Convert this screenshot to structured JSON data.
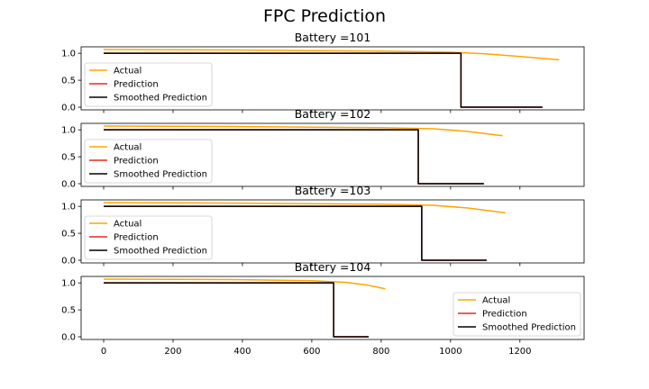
{
  "figure": {
    "title": "FPC Prediction"
  },
  "colors": {
    "actual": "#FFA500",
    "prediction": "#E8281E",
    "smoothed": "#000000",
    "legend_border": "#CCCCCC"
  },
  "chart_data": [
    {
      "type": "line",
      "title": "Battery =101",
      "xlim": [
        -65,
        1385
      ],
      "ylim": [
        -0.05,
        1.12
      ],
      "xticks": [
        0,
        200,
        400,
        600,
        800,
        1000,
        1200
      ],
      "yticks": [
        0.0,
        0.5,
        1.0
      ],
      "show_xtick_labels": false,
      "legend_loc": "left",
      "series": [
        {
          "name": "Actual",
          "x": [
            0,
            400,
            800,
            1000,
            1100,
            1200,
            1313
          ],
          "y": [
            1.07,
            1.06,
            1.04,
            1.02,
            0.99,
            0.94,
            0.88
          ]
        },
        {
          "name": "Prediction",
          "x": [
            0,
            1030,
            1030,
            1265
          ],
          "y": [
            1,
            1,
            0,
            0
          ]
        },
        {
          "name": "Smoothed Prediction",
          "x": [
            0,
            1030,
            1030,
            1265
          ],
          "y": [
            1,
            1,
            0,
            0
          ]
        }
      ]
    },
    {
      "type": "line",
      "title": "Battery =102",
      "xlim": [
        -65,
        1385
      ],
      "ylim": [
        -0.05,
        1.12
      ],
      "xticks": [
        0,
        200,
        400,
        600,
        800,
        1000,
        1200
      ],
      "yticks": [
        0.0,
        0.5,
        1.0
      ],
      "show_xtick_labels": false,
      "legend_loc": "left",
      "series": [
        {
          "name": "Actual",
          "x": [
            0,
            400,
            800,
            950,
            1050,
            1150
          ],
          "y": [
            1.07,
            1.06,
            1.04,
            1.02,
            0.97,
            0.89
          ]
        },
        {
          "name": "Prediction",
          "x": [
            0,
            907,
            907,
            1096
          ],
          "y": [
            1,
            1,
            0,
            0
          ]
        },
        {
          "name": "Smoothed Prediction",
          "x": [
            0,
            907,
            907,
            1096
          ],
          "y": [
            1,
            1,
            0,
            0
          ]
        }
      ]
    },
    {
      "type": "line",
      "title": "Battery =103",
      "xlim": [
        -65,
        1385
      ],
      "ylim": [
        -0.05,
        1.12
      ],
      "xticks": [
        0,
        200,
        400,
        600,
        800,
        1000,
        1200
      ],
      "yticks": [
        0.0,
        0.5,
        1.0
      ],
      "show_xtick_labels": false,
      "legend_loc": "left",
      "series": [
        {
          "name": "Actual",
          "x": [
            0,
            400,
            800,
            950,
            1050,
            1158
          ],
          "y": [
            1.07,
            1.06,
            1.04,
            1.02,
            0.97,
            0.88
          ]
        },
        {
          "name": "Prediction",
          "x": [
            0,
            917,
            917,
            1104
          ],
          "y": [
            1,
            1,
            0,
            0
          ]
        },
        {
          "name": "Smoothed Prediction",
          "x": [
            0,
            917,
            917,
            1104
          ],
          "y": [
            1,
            1,
            0,
            0
          ]
        }
      ]
    },
    {
      "type": "line",
      "title": "Battery =104",
      "xlim": [
        -65,
        1385
      ],
      "ylim": [
        -0.05,
        1.12
      ],
      "xticks": [
        0,
        200,
        400,
        600,
        800,
        1000,
        1200
      ],
      "yticks": [
        0.0,
        0.5,
        1.0
      ],
      "show_xtick_labels": true,
      "legend_loc": "right",
      "series": [
        {
          "name": "Actual",
          "x": [
            0,
            400,
            600,
            700,
            760,
            812
          ],
          "y": [
            1.07,
            1.06,
            1.04,
            1.01,
            0.96,
            0.89
          ]
        },
        {
          "name": "Prediction",
          "x": [
            0,
            663,
            663,
            764
          ],
          "y": [
            1,
            1,
            0,
            0
          ]
        },
        {
          "name": "Smoothed Prediction",
          "x": [
            0,
            663,
            663,
            764
          ],
          "y": [
            1,
            1,
            0,
            0
          ]
        }
      ]
    }
  ]
}
